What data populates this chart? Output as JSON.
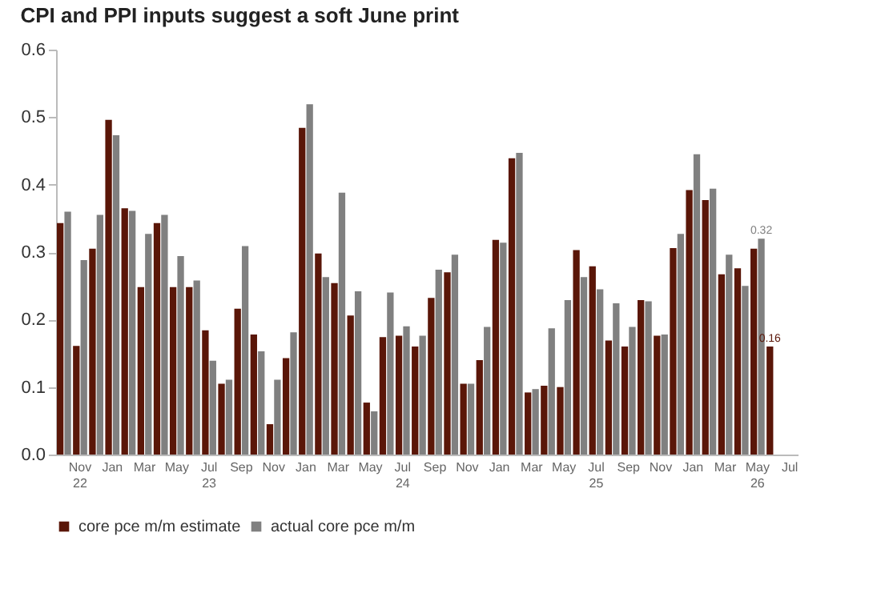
{
  "chart_data": {
    "type": "bar",
    "title": "CPI and PPI inputs suggest a soft June print",
    "categories": [
      null,
      "Nov 22",
      null,
      "Jan",
      null,
      "Mar",
      null,
      "May",
      null,
      "Jul 23",
      null,
      "Sep",
      null,
      "Nov",
      null,
      "Jan",
      null,
      "Mar",
      null,
      "May",
      null,
      "Jul 24",
      null,
      "Sep",
      null,
      "Nov",
      null,
      "Jan",
      null,
      "Mar",
      null,
      "May",
      null,
      "Jul 25",
      null,
      "Sep",
      null,
      "Nov",
      null,
      "Jan",
      null,
      "Mar",
      null,
      "May 26",
      null,
      "Jul"
    ],
    "series": [
      {
        "name": "core pce m/m estimate",
        "color": "#5a1608",
        "values": [
          0.343,
          0.161,
          0.305,
          0.496,
          0.365,
          0.248,
          0.343,
          0.248,
          0.248,
          0.184,
          0.105,
          0.216,
          0.178,
          0.045,
          0.143,
          0.484,
          0.298,
          0.254,
          0.206,
          0.077,
          0.174,
          0.176,
          0.16,
          0.232,
          0.27,
          0.105,
          0.14,
          0.318,
          0.439,
          0.092,
          0.102,
          0.1,
          0.303,
          0.279,
          0.169,
          0.16,
          0.229,
          0.176,
          0.306,
          0.392,
          0.377,
          0.267,
          0.276,
          0.305,
          0.16,
          null
        ],
        "value_labels": [
          null,
          null,
          null,
          null,
          null,
          null,
          null,
          null,
          null,
          null,
          null,
          null,
          null,
          null,
          null,
          null,
          null,
          null,
          null,
          null,
          null,
          null,
          null,
          null,
          null,
          null,
          null,
          null,
          null,
          null,
          null,
          null,
          null,
          null,
          null,
          null,
          null,
          null,
          null,
          null,
          null,
          null,
          null,
          null,
          "0.16",
          null
        ]
      },
      {
        "name": "actual core pce m/m",
        "color": "#808080",
        "values": [
          0.36,
          0.288,
          0.355,
          0.473,
          0.361,
          0.327,
          0.355,
          0.294,
          0.258,
          0.139,
          0.111,
          0.309,
          0.153,
          0.111,
          0.181,
          0.519,
          0.263,
          0.388,
          0.242,
          0.064,
          0.24,
          0.19,
          0.176,
          0.274,
          0.296,
          0.105,
          0.189,
          0.314,
          0.447,
          0.097,
          0.187,
          0.229,
          0.263,
          0.245,
          0.224,
          0.189,
          0.227,
          0.178,
          0.327,
          0.445,
          0.394,
          0.296,
          0.25,
          0.32,
          null,
          null
        ],
        "value_labels": [
          null,
          null,
          null,
          null,
          null,
          null,
          null,
          null,
          null,
          null,
          null,
          null,
          null,
          null,
          null,
          null,
          null,
          null,
          null,
          null,
          null,
          null,
          null,
          null,
          null,
          null,
          null,
          null,
          null,
          null,
          null,
          null,
          null,
          null,
          null,
          null,
          null,
          null,
          null,
          null,
          null,
          null,
          null,
          "0.32",
          null,
          null
        ]
      }
    ],
    "ylim": [
      0,
      0.6
    ],
    "yticks": [
      {
        "value": 0,
        "label": "0.0"
      },
      0.1,
      0.2,
      0.3,
      0.4,
      0.5,
      0.6
    ],
    "legend": "bottom"
  }
}
